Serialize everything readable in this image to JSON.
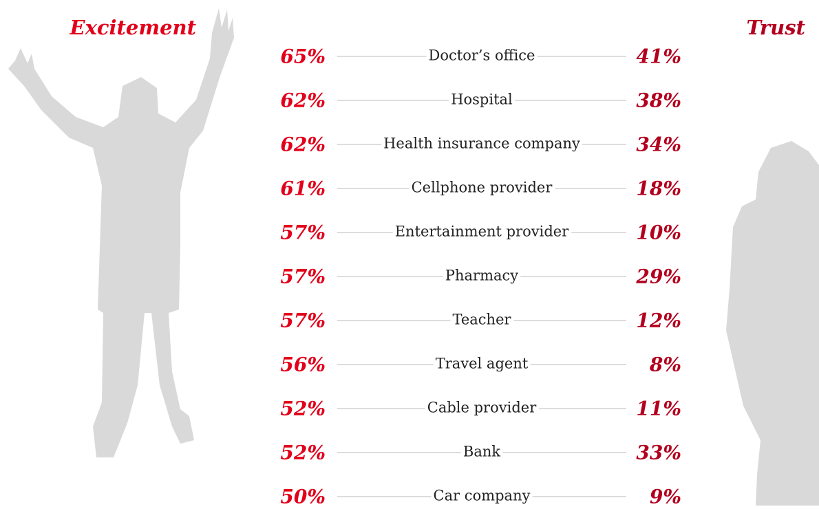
{
  "header": {
    "left": "Excitement",
    "right": "Trust"
  },
  "rows": [
    {
      "label": "Doctor’s office",
      "excitement": "65%",
      "trust": "41%"
    },
    {
      "label": "Hospital",
      "excitement": "62%",
      "trust": "38%"
    },
    {
      "label": "Health insurance company",
      "excitement": "62%",
      "trust": "34%"
    },
    {
      "label": "Cellphone provider",
      "excitement": "61%",
      "trust": "18%"
    },
    {
      "label": "Entertainment provider",
      "excitement": "57%",
      "trust": "10%"
    },
    {
      "label": "Pharmacy",
      "excitement": "57%",
      "trust": "29%"
    },
    {
      "label": "Teacher",
      "excitement": "57%",
      "trust": "12%"
    },
    {
      "label": "Travel agent",
      "excitement": "56%",
      "trust": "8%"
    },
    {
      "label": "Cable provider",
      "excitement": "52%",
      "trust": "11%"
    },
    {
      "label": "Bank",
      "excitement": "52%",
      "trust": "33%"
    },
    {
      "label": "Car company",
      "excitement": "50%",
      "trust": "9%"
    }
  ]
}
